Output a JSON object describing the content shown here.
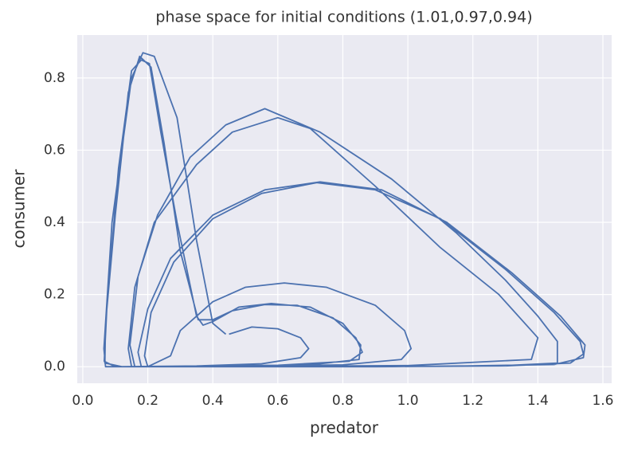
{
  "chart_data": {
    "type": "line",
    "title": "phase space for initial conditions (1.01,0.97,0.94)",
    "xlabel": "predator",
    "ylabel": "consumer",
    "xlim": [
      -0.017,
      1.627
    ],
    "ylim": [
      -0.046,
      0.919
    ],
    "xticks": [
      {
        "value": 0,
        "label": "0.0"
      },
      0.2,
      0.4,
      0.6,
      0.8,
      {
        "value": 1,
        "label": "1.0"
      },
      1.2,
      1.4,
      1.6
    ],
    "yticks": [
      {
        "value": 0,
        "label": "0.0"
      },
      0.2,
      0.4,
      0.6,
      0.8
    ],
    "grid": true,
    "background": "#eaeaf2",
    "grid_color": "#ffffff",
    "color": "#4c72b0",
    "x": [
      0.45,
      0.52,
      0.6,
      0.67,
      0.695,
      0.67,
      0.55,
      0.35,
      0.12,
      0.068,
      0.07,
      0.1,
      0.14,
      0.175,
      0.21,
      0.25,
      0.3,
      0.355,
      0.4,
      0.46,
      0.56,
      0.66,
      0.77,
      0.84,
      0.86,
      0.82,
      0.6,
      0.3,
      0.1,
      0.066,
      0.075,
      0.11,
      0.15,
      0.18,
      0.205,
      0.24,
      0.29,
      0.35,
      0.37,
      0.4,
      0.48,
      0.58,
      0.7,
      0.8,
      0.855,
      0.85,
      0.7,
      0.4,
      0.2,
      0.27,
      0.3,
      0.4,
      0.5,
      0.62,
      0.75,
      0.9,
      0.99,
      1.01,
      0.98,
      0.8,
      0.5,
      0.2,
      0.19,
      0.21,
      0.28,
      0.4,
      0.55,
      0.72,
      0.9,
      1.1,
      1.3,
      1.45,
      1.53,
      1.54,
      1.5,
      1.3,
      0.9,
      0.4,
      0.18,
      0.17,
      0.2,
      0.27,
      0.4,
      0.56,
      0.73,
      0.92,
      1.12,
      1.32,
      1.47,
      1.545,
      1.54,
      1.45,
      1.1,
      0.5,
      0.16,
      0.145,
      0.17,
      0.23,
      0.33,
      0.44,
      0.56,
      0.73,
      0.95,
      1.15,
      1.3,
      1.4,
      1.46,
      1.46,
      1.3,
      0.9,
      0.4,
      0.15,
      0.14,
      0.16,
      0.22,
      0.35,
      0.46,
      0.6,
      0.7,
      0.9,
      1.1,
      1.28,
      1.4,
      1.38,
      1.0,
      0.4,
      0.07,
      0.065,
      0.09,
      0.15,
      0.185,
      0.22,
      0.29,
      0.35,
      0.4,
      0.44
    ],
    "values": [
      0.09,
      0.11,
      0.105,
      0.08,
      0.05,
      0.025,
      0.008,
      0.002,
      0.0,
      0.01,
      0.12,
      0.42,
      0.76,
      0.86,
      0.83,
      0.62,
      0.32,
      0.13,
      0.13,
      0.155,
      0.172,
      0.17,
      0.135,
      0.08,
      0.04,
      0.015,
      0.004,
      0.001,
      0.0,
      0.015,
      0.18,
      0.55,
      0.82,
      0.85,
      0.84,
      0.65,
      0.4,
      0.14,
      0.115,
      0.125,
      0.165,
      0.175,
      0.165,
      0.12,
      0.06,
      0.02,
      0.005,
      0.001,
      0.0,
      0.03,
      0.1,
      0.18,
      0.22,
      0.232,
      0.22,
      0.17,
      0.1,
      0.05,
      0.02,
      0.005,
      0.001,
      0.0,
      0.03,
      0.15,
      0.29,
      0.41,
      0.48,
      0.51,
      0.49,
      0.41,
      0.27,
      0.15,
      0.07,
      0.035,
      0.01,
      0.002,
      0.0,
      0.0,
      0.0,
      0.04,
      0.16,
      0.3,
      0.42,
      0.49,
      0.512,
      0.49,
      0.4,
      0.26,
      0.14,
      0.06,
      0.025,
      0.006,
      0.001,
      0.0,
      0.0,
      0.06,
      0.25,
      0.42,
      0.58,
      0.67,
      0.715,
      0.65,
      0.52,
      0.37,
      0.24,
      0.14,
      0.07,
      0.01,
      0.003,
      0.0,
      0.0,
      0.0,
      0.05,
      0.22,
      0.4,
      0.56,
      0.65,
      0.69,
      0.66,
      0.5,
      0.33,
      0.2,
      0.08,
      0.02,
      0.003,
      0.0,
      0.0,
      0.05,
      0.4,
      0.8,
      0.87,
      0.86,
      0.69,
      0.35,
      0.12,
      0.09
    ]
  }
}
